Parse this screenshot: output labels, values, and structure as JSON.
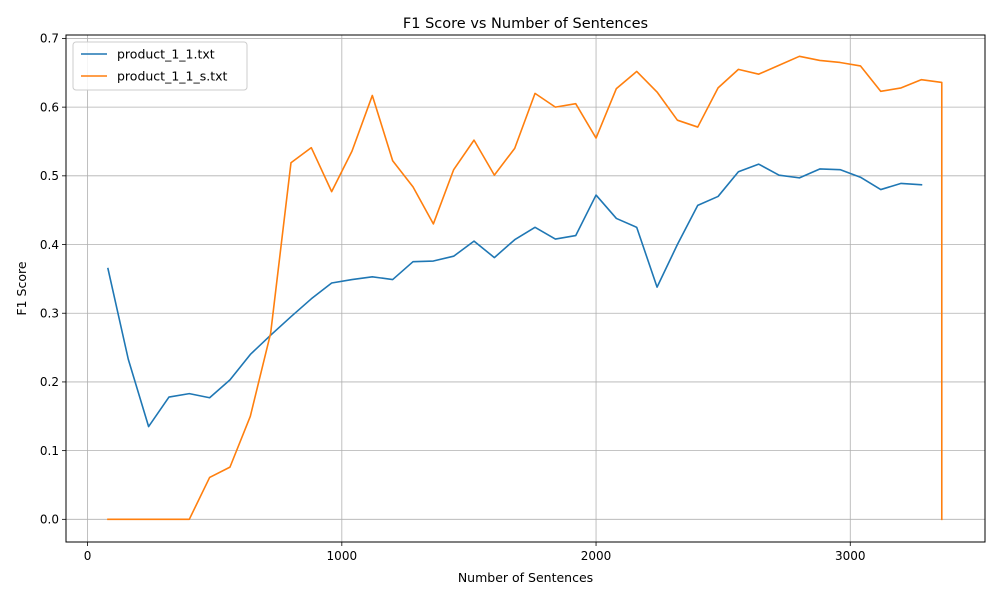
{
  "chart_data": {
    "type": "line",
    "title": "F1 Score vs Number of Sentences",
    "xlabel": "Number of Sentences",
    "ylabel": "F1 Score",
    "xlim": [
      -85,
      3530
    ],
    "ylim": [
      -0.033,
      0.705
    ],
    "xticks": [
      0,
      1000,
      2000,
      3000
    ],
    "xtick_labels": [
      "0",
      "1000",
      "2000",
      "3000"
    ],
    "yticks": [
      0.0,
      0.1,
      0.2,
      0.3,
      0.4,
      0.5,
      0.6,
      0.7
    ],
    "ytick_labels": [
      "0.0",
      "0.1",
      "0.2",
      "0.3",
      "0.4",
      "0.5",
      "0.6",
      "0.7"
    ],
    "grid": true,
    "legend_position": "upper-left",
    "series": [
      {
        "name": "product_1_1.txt",
        "color": "#1f77b4",
        "x": [
          80,
          160,
          240,
          320,
          400,
          480,
          560,
          640,
          720,
          800,
          880,
          960,
          1040,
          1120,
          1200,
          1280,
          1360,
          1440,
          1520,
          1600,
          1680,
          1760,
          1840,
          1920,
          2000,
          2080,
          2160,
          2240,
          2320,
          2400,
          2480,
          2560,
          2640,
          2720,
          2800,
          2880,
          2960,
          3040,
          3120,
          3200,
          3280
        ],
        "y": [
          0.365,
          0.233,
          0.135,
          0.178,
          0.183,
          0.177,
          0.203,
          0.24,
          0.268,
          0.295,
          0.321,
          0.344,
          0.349,
          0.353,
          0.349,
          0.375,
          0.376,
          0.383,
          0.405,
          0.381,
          0.407,
          0.425,
          0.408,
          0.413,
          0.472,
          0.438,
          0.425,
          0.338,
          0.4,
          0.457,
          0.47,
          0.506,
          0.517,
          0.501,
          0.497,
          0.51,
          0.509,
          0.498,
          0.48,
          0.489,
          0.487
        ]
      },
      {
        "name": "product_1_1_s.txt",
        "color": "#ff7f0e",
        "x": [
          80,
          160,
          240,
          320,
          400,
          480,
          560,
          640,
          720,
          800,
          880,
          960,
          1040,
          1120,
          1200,
          1280,
          1360,
          1440,
          1520,
          1600,
          1680,
          1760,
          1840,
          1920,
          2000,
          2080,
          2160,
          2240,
          2320,
          2400,
          2480,
          2560,
          2640,
          2720,
          2800,
          2880,
          2960,
          3040,
          3120,
          3200,
          3280,
          3360,
          3360
        ],
        "y": [
          0.0,
          0.0,
          0.0,
          0.0,
          0.0,
          0.061,
          0.076,
          0.15,
          0.271,
          0.519,
          0.541,
          0.477,
          0.536,
          0.617,
          0.522,
          0.484,
          0.43,
          0.509,
          0.552,
          0.501,
          0.54,
          0.62,
          0.6,
          0.605,
          0.555,
          0.627,
          0.652,
          0.622,
          0.581,
          0.571,
          0.628,
          0.655,
          0.648,
          0.661,
          0.674,
          0.668,
          0.665,
          0.66,
          0.623,
          0.628,
          0.64,
          0.636,
          0.0
        ]
      }
    ]
  }
}
